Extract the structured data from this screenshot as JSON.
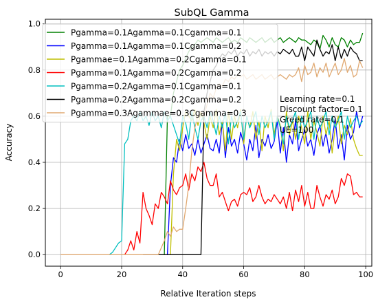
{
  "chart_data": {
    "type": "line",
    "title": "SubQL Gamma",
    "xlabel": "Relative Iteration steps",
    "ylabel": "Accuracy",
    "xlim": [
      -5,
      102
    ],
    "ylim": [
      -0.05,
      1.02
    ],
    "grid": true,
    "x_ticks": [
      0,
      20,
      40,
      60,
      80,
      100
    ],
    "y_ticks": [
      0.0,
      0.2,
      0.4,
      0.6,
      0.8,
      1.0
    ],
    "x_tick_labels": [
      "0",
      "20",
      "40",
      "60",
      "80",
      "100"
    ],
    "y_tick_labels": [
      "0.0",
      "0.2",
      "0.4",
      "0.6",
      "0.8",
      "1.0"
    ],
    "legend_position": "top-left",
    "annotation_lines": [
      "Learning rate=0.1",
      "Discount factor=0.1",
      "Greed rate=0.1",
      "UE=100"
    ],
    "series": [
      {
        "name": "Pgamma=0.1Agamma=0.1Cgamma=0.1",
        "color": "#008000",
        "x": [
          34,
          35,
          36,
          37,
          38,
          39,
          40,
          41,
          42,
          43,
          44,
          45,
          46,
          47,
          48,
          49,
          50,
          51,
          52,
          53,
          54,
          55,
          56,
          57,
          58,
          59,
          60,
          61,
          62,
          63,
          64,
          65,
          66,
          67,
          68,
          69,
          70,
          71,
          72,
          73,
          74,
          75,
          76,
          77,
          78,
          79,
          80,
          81,
          82,
          83,
          84,
          85,
          86,
          87,
          88,
          89,
          90,
          91,
          92,
          93,
          94,
          95,
          96,
          97,
          98,
          99
        ],
        "y": [
          0.0,
          0.6,
          0.6,
          0.7,
          0.75,
          0.8,
          0.82,
          0.85,
          0.88,
          0.9,
          0.91,
          0.93,
          0.92,
          0.93,
          0.94,
          0.93,
          0.92,
          0.94,
          0.93,
          0.92,
          0.93,
          0.94,
          0.92,
          0.93,
          0.92,
          0.94,
          0.93,
          0.92,
          0.94,
          0.93,
          0.92,
          0.93,
          0.94,
          0.92,
          0.93,
          0.94,
          0.92,
          0.93,
          0.94,
          0.92,
          0.93,
          0.94,
          0.93,
          0.92,
          0.94,
          0.93,
          0.93,
          0.92,
          0.91,
          0.93,
          0.92,
          0.89,
          0.95,
          0.93,
          0.9,
          0.94,
          0.91,
          0.9,
          0.94,
          0.93,
          0.9,
          0.93,
          0.91,
          0.92,
          0.92,
          0.96
        ]
      },
      {
        "name": "Pgamma=0.1Agamma=0.1Cgamma=0.2",
        "color": "#0000ff",
        "x": [
          35,
          36,
          37,
          38,
          39,
          40,
          41,
          42,
          43,
          44,
          45,
          46,
          47,
          48,
          49,
          50,
          51,
          52,
          53,
          54,
          55,
          56,
          57,
          58,
          59,
          60,
          61,
          62,
          63,
          64,
          65,
          66,
          67,
          68,
          69,
          70,
          71,
          72,
          73,
          74,
          75,
          76,
          77,
          78,
          79,
          80,
          81,
          82,
          83,
          84,
          85,
          86,
          87,
          88,
          89,
          90,
          91,
          92,
          93,
          94,
          95,
          96,
          97,
          98,
          99
        ],
        "y": [
          0.0,
          0.3,
          0.42,
          0.4,
          0.5,
          0.45,
          0.52,
          0.46,
          0.48,
          0.43,
          0.5,
          0.44,
          0.48,
          0.52,
          0.46,
          0.45,
          0.5,
          0.44,
          0.58,
          0.42,
          0.55,
          0.47,
          0.5,
          0.44,
          0.53,
          0.48,
          0.41,
          0.5,
          0.45,
          0.56,
          0.42,
          0.5,
          0.47,
          0.52,
          0.46,
          0.49,
          0.58,
          0.44,
          0.55,
          0.4,
          0.52,
          0.48,
          0.58,
          0.45,
          0.5,
          0.54,
          0.47,
          0.5,
          0.43,
          0.52,
          0.56,
          0.47,
          0.53,
          0.44,
          0.5,
          0.59,
          0.46,
          0.52,
          0.41,
          0.56,
          0.5,
          0.53,
          0.62,
          0.55,
          0.6
        ]
      },
      {
        "name": "Pgammae=0.1Agamma=0.2Cgamma=0.1",
        "color": "#bfbf00",
        "x": [
          36,
          37,
          38,
          39,
          40,
          41,
          42,
          43,
          44,
          45,
          46,
          47,
          48,
          49,
          50,
          51,
          52,
          53,
          54,
          55,
          56,
          57,
          58,
          59,
          60,
          61,
          62,
          63,
          64,
          65,
          66,
          67,
          68,
          69,
          70,
          71,
          72,
          73,
          74,
          75,
          76,
          77,
          78,
          79,
          80,
          81,
          82,
          83,
          84,
          85,
          86,
          87,
          88,
          89,
          90,
          91,
          92,
          93,
          94,
          95,
          96,
          97,
          98,
          99
        ],
        "y": [
          0.0,
          0.35,
          0.5,
          0.45,
          0.55,
          0.62,
          0.6,
          0.58,
          0.63,
          0.56,
          0.62,
          0.57,
          0.5,
          0.6,
          0.55,
          0.63,
          0.52,
          0.58,
          0.45,
          0.62,
          0.5,
          0.6,
          0.55,
          0.63,
          0.48,
          0.6,
          0.55,
          0.62,
          0.5,
          0.58,
          0.45,
          0.6,
          0.55,
          0.63,
          0.52,
          0.6,
          0.56,
          0.45,
          0.62,
          0.52,
          0.58,
          0.5,
          0.6,
          0.55,
          0.48,
          0.62,
          0.5,
          0.58,
          0.53,
          0.47,
          0.6,
          0.52,
          0.58,
          0.44,
          0.55,
          0.6,
          0.48,
          0.56,
          0.52,
          0.59,
          0.5,
          0.46,
          0.43,
          0.43
        ]
      },
      {
        "name": "Pgamma=0.1Agamma=0.2Cgamma=0.2",
        "color": "#ff0000",
        "x": [
          21,
          22,
          23,
          24,
          25,
          26,
          27,
          28,
          29,
          30,
          31,
          32,
          33,
          34,
          35,
          36,
          37,
          38,
          39,
          40,
          41,
          42,
          43,
          44,
          45,
          46,
          47,
          48,
          49,
          50,
          51,
          52,
          53,
          54,
          55,
          56,
          57,
          58,
          59,
          60,
          61,
          62,
          63,
          64,
          65,
          66,
          67,
          68,
          69,
          70,
          71,
          72,
          73,
          74,
          75,
          76,
          77,
          78,
          79,
          80,
          81,
          82,
          83,
          84,
          85,
          86,
          87,
          88,
          89,
          90,
          91,
          92,
          93,
          94,
          95,
          96,
          97,
          98,
          99
        ],
        "y": [
          0.0,
          0.02,
          0.06,
          0.02,
          0.1,
          0.05,
          0.27,
          0.2,
          0.17,
          0.13,
          0.22,
          0.2,
          0.27,
          0.25,
          0.22,
          0.32,
          0.28,
          0.26,
          0.29,
          0.3,
          0.35,
          0.28,
          0.35,
          0.32,
          0.38,
          0.36,
          0.4,
          0.33,
          0.3,
          0.3,
          0.35,
          0.25,
          0.27,
          0.23,
          0.19,
          0.23,
          0.24,
          0.21,
          0.26,
          0.27,
          0.26,
          0.29,
          0.23,
          0.25,
          0.3,
          0.25,
          0.22,
          0.24,
          0.23,
          0.26,
          0.24,
          0.22,
          0.25,
          0.2,
          0.27,
          0.19,
          0.28,
          0.23,
          0.3,
          0.21,
          0.27,
          0.2,
          0.2,
          0.3,
          0.25,
          0.21,
          0.26,
          0.24,
          0.28,
          0.22,
          0.25,
          0.33,
          0.3,
          0.35,
          0.34,
          0.26,
          0.27,
          0.25,
          0.25
        ]
      },
      {
        "name": "Pgamma=0.2Agamma=0.1Cgamma=0.1",
        "color": "#00bfbf",
        "x": [
          16,
          17,
          18,
          19,
          20,
          21,
          22,
          23,
          24,
          25,
          26,
          27,
          28,
          29,
          30,
          31,
          32,
          33,
          34,
          35,
          36,
          37,
          38,
          39,
          40,
          41,
          42,
          43,
          44,
          45,
          46,
          47,
          48,
          49,
          50,
          51,
          52,
          53,
          54,
          55,
          56,
          57,
          58,
          59,
          60,
          61,
          62,
          63,
          64,
          65,
          66,
          67,
          68,
          69,
          70,
          71,
          72,
          73,
          74,
          75,
          76,
          77,
          78,
          79,
          80,
          81,
          82,
          83,
          84,
          85,
          86,
          87,
          88,
          89,
          90,
          91,
          92,
          93,
          94,
          95,
          96,
          97,
          98,
          99
        ],
        "y": [
          0.0,
          0.01,
          0.03,
          0.05,
          0.06,
          0.48,
          0.5,
          0.58,
          0.6,
          0.58,
          0.62,
          0.58,
          0.6,
          0.56,
          0.62,
          0.58,
          0.6,
          0.55,
          0.62,
          0.58,
          0.6,
          0.56,
          0.52,
          0.48,
          0.6,
          0.57,
          0.5,
          0.62,
          0.55,
          0.5,
          0.58,
          0.6,
          0.55,
          0.62,
          0.58,
          0.52,
          0.6,
          0.55,
          0.62,
          0.48,
          0.6,
          0.55,
          0.58,
          0.62,
          0.5,
          0.6,
          0.55,
          0.58,
          0.62,
          0.52,
          0.6,
          0.55,
          0.58,
          0.62,
          0.5,
          0.6,
          0.55,
          0.48,
          0.6,
          0.55,
          0.58,
          0.62,
          0.5,
          0.6,
          0.55,
          0.58,
          0.62,
          0.5,
          0.6,
          0.55,
          0.58,
          0.62,
          0.52,
          0.6,
          0.55,
          0.58,
          0.62,
          0.5,
          0.6,
          0.55,
          0.58,
          0.6,
          0.56,
          0.58
        ]
      },
      {
        "name": "Pgamma=0.2Agamma=0.2Cgamma=0.2",
        "color": "#000000",
        "x": [
          27,
          28,
          29,
          30,
          31,
          32,
          33,
          34,
          35,
          36,
          37,
          38,
          39,
          40,
          41,
          42,
          43,
          44,
          45,
          46,
          47,
          48,
          49,
          50,
          51,
          52,
          53,
          54,
          55,
          56,
          57,
          58,
          59,
          60,
          61,
          62,
          63,
          64,
          65,
          66,
          67,
          68,
          69,
          70,
          71,
          72,
          73,
          74,
          75,
          76,
          77,
          78,
          79,
          80,
          81,
          82,
          83,
          84,
          85,
          86,
          87,
          88,
          89,
          90,
          91,
          92,
          93,
          94,
          95,
          96,
          97,
          98,
          99
        ],
        "y": [
          0.0,
          0.0,
          0.0,
          0.0,
          0.0,
          0.0,
          0.0,
          0.0,
          0.0,
          0.0,
          0.0,
          0.0,
          0.0,
          0.0,
          0.0,
          0.0,
          0.0,
          0.0,
          0.0,
          0.0,
          0.62,
          0.7,
          0.75,
          0.8,
          0.82,
          0.85,
          0.87,
          0.86,
          0.88,
          0.87,
          0.89,
          0.86,
          0.88,
          0.87,
          0.89,
          0.86,
          0.88,
          0.87,
          0.89,
          0.86,
          0.88,
          0.87,
          0.88,
          0.86,
          0.88,
          0.87,
          0.89,
          0.88,
          0.87,
          0.89,
          0.86,
          0.86,
          0.9,
          0.84,
          0.9,
          0.88,
          0.86,
          0.93,
          0.89,
          0.86,
          0.88,
          0.87,
          0.91,
          0.84,
          0.9,
          0.85,
          0.89,
          0.86,
          0.9,
          0.88,
          0.87,
          0.84,
          0.84
        ]
      },
      {
        "name": "Pgamma=0.3Agammae=0.3Cgamma=0.3",
        "color": "#e0a870",
        "x": [
          0,
          5,
          10,
          15,
          20,
          25,
          26,
          27,
          28,
          29,
          30,
          31,
          32,
          33,
          34,
          35,
          36,
          37,
          38,
          39,
          40,
          41,
          42,
          43,
          44,
          45,
          46,
          47,
          48,
          49,
          50,
          51,
          52,
          53,
          54,
          55,
          56,
          57,
          58,
          59,
          60,
          61,
          62,
          63,
          64,
          65,
          66,
          67,
          68,
          69,
          70,
          71,
          72,
          73,
          74,
          75,
          76,
          77,
          78,
          79,
          80,
          81,
          82,
          83,
          84,
          85,
          86,
          87,
          88,
          89,
          90,
          91,
          92,
          93,
          94,
          95,
          96,
          97,
          98,
          99
        ],
        "y": [
          0.0,
          0.0,
          0.0,
          0.0,
          0.0,
          0.0,
          0.0,
          0.0,
          0.0,
          0.0,
          0.0,
          0.0,
          0.0,
          0.03,
          0.06,
          0.1,
          0.08,
          0.12,
          0.1,
          0.11,
          0.11,
          0.2,
          0.3,
          0.45,
          0.55,
          0.6,
          0.62,
          0.6,
          0.65,
          0.7,
          0.68,
          0.72,
          0.74,
          0.73,
          0.76,
          0.75,
          0.77,
          0.76,
          0.78,
          0.77,
          0.78,
          0.76,
          0.77,
          0.78,
          0.76,
          0.77,
          0.78,
          0.76,
          0.77,
          0.78,
          0.76,
          0.77,
          0.78,
          0.77,
          0.76,
          0.78,
          0.77,
          0.78,
          0.81,
          0.75,
          0.82,
          0.78,
          0.79,
          0.83,
          0.77,
          0.81,
          0.79,
          0.83,
          0.77,
          0.8,
          0.83,
          0.78,
          0.8,
          0.85,
          0.79,
          0.82,
          0.77,
          0.78,
          0.84,
          0.81
        ]
      }
    ]
  }
}
